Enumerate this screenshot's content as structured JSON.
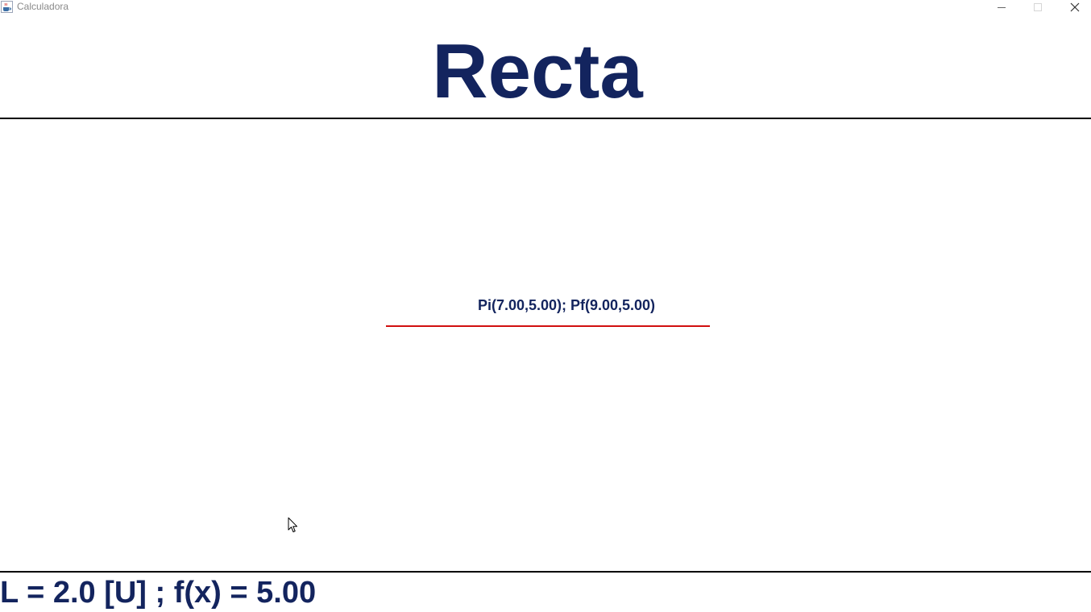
{
  "window": {
    "title": "Calculadora",
    "app_icon": "java-coffee-cup-icon",
    "controls": {
      "minimize_icon": "minimize-icon",
      "maximize_icon": "maximize-icon",
      "close_icon": "close-icon"
    }
  },
  "heading": {
    "text": "Recta"
  },
  "canvas": {
    "points_label": "Pi(7.00,5.00); Pf(9.00,5.00)",
    "segment": {
      "start": [
        7.0,
        5.0
      ],
      "end": [
        9.0,
        5.0
      ],
      "color": "#d10f0f"
    }
  },
  "footer": {
    "result": "L = 2.0 [U] ; f(x) = 5.00"
  },
  "colors": {
    "text_primary": "#13245e",
    "line": "#d10f0f",
    "divider": "#000000"
  }
}
